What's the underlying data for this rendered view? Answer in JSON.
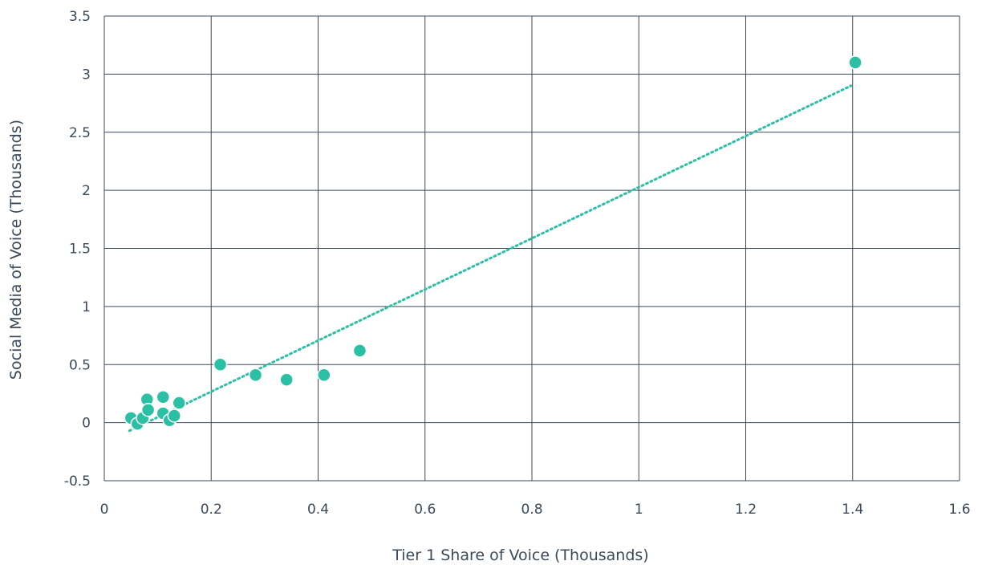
{
  "chart_data": {
    "type": "scatter",
    "title": "",
    "xlabel": "Tier 1 Share of Voice (Thousands)",
    "ylabel": "Social Media of Voice (Thousands)",
    "xlim": [
      0,
      1.6
    ],
    "ylim": [
      -0.5,
      3.5
    ],
    "x_ticks": [
      0,
      0.2,
      0.4,
      0.6,
      0.8,
      1.0,
      1.2,
      1.4,
      1.6
    ],
    "x_tick_labels": [
      "0",
      "0.2",
      "0.4",
      "0.6",
      "0.8",
      "1",
      "1.2",
      "1.4",
      "1.6"
    ],
    "y_ticks": [
      -0.5,
      0,
      0.5,
      1.0,
      1.5,
      2.0,
      2.5,
      3.0,
      3.5
    ],
    "y_tick_labels": [
      "-0.5",
      "0",
      "0.5",
      "1",
      "1.5",
      "2",
      "2.5",
      "3",
      "3.5"
    ],
    "grid": true,
    "legend": "none",
    "series": [
      {
        "points": [
          {
            "x": 0.05,
            "y": 0.04
          },
          {
            "x": 0.062,
            "y": -0.01
          },
          {
            "x": 0.072,
            "y": 0.04
          },
          {
            "x": 0.08,
            "y": 0.2
          },
          {
            "x": 0.082,
            "y": 0.11
          },
          {
            "x": 0.11,
            "y": 0.22
          },
          {
            "x": 0.11,
            "y": 0.08
          },
          {
            "x": 0.122,
            "y": 0.02
          },
          {
            "x": 0.131,
            "y": 0.06
          },
          {
            "x": 0.14,
            "y": 0.17
          },
          {
            "x": 0.217,
            "y": 0.5
          },
          {
            "x": 0.283,
            "y": 0.41
          },
          {
            "x": 0.341,
            "y": 0.37
          },
          {
            "x": 0.411,
            "y": 0.41
          },
          {
            "x": 0.478,
            "y": 0.62
          },
          {
            "x": 1.405,
            "y": 3.1
          }
        ]
      }
    ],
    "trendline": {
      "style": "dotted",
      "from": {
        "x": 0.047,
        "y": -0.07
      },
      "to": {
        "x": 1.397,
        "y": 2.9
      }
    },
    "colors": {
      "points": "#2bbfa4",
      "trendline": "#2bbfa4",
      "grid": "#3b4a59",
      "text": "#3b4a59"
    }
  }
}
